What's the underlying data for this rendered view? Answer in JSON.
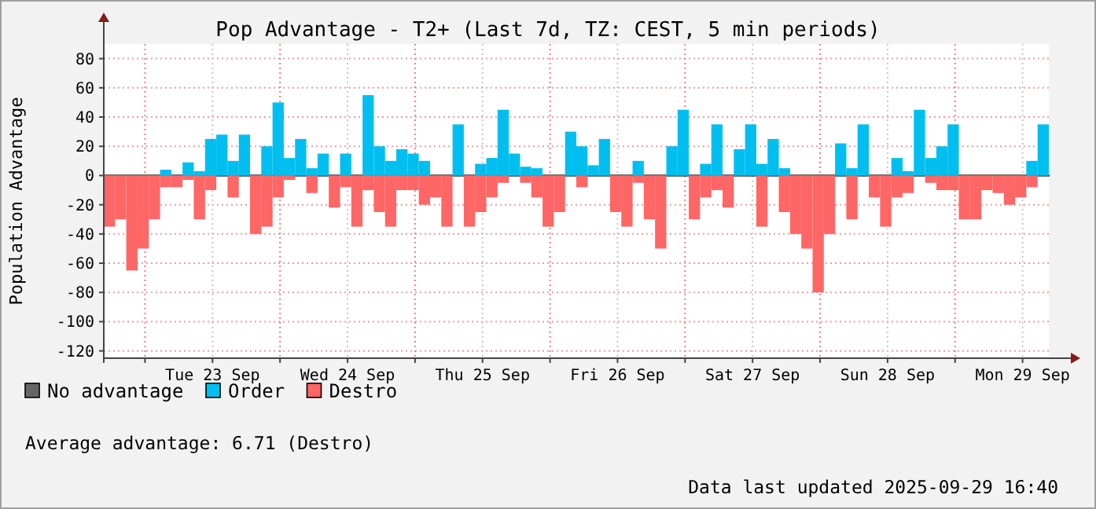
{
  "chart_data": {
    "type": "bar",
    "title": "Pop Advantage - T2+ (Last 7d, TZ: CEST, 5 min periods)",
    "ylabel": "Population Advantage",
    "x": [
      "2025-09-22T17:40",
      "2025-09-22T19:40",
      "2025-09-22T21:40",
      "2025-09-22T23:40",
      "2025-09-23T01:40",
      "2025-09-23T03:40",
      "2025-09-23T05:40",
      "2025-09-23T07:40",
      "2025-09-23T09:40",
      "2025-09-23T11:40",
      "2025-09-23T13:40",
      "2025-09-23T15:40",
      "2025-09-23T17:40",
      "2025-09-23T19:40",
      "2025-09-23T21:40",
      "2025-09-23T23:40",
      "2025-09-24T01:40",
      "2025-09-24T03:40",
      "2025-09-24T05:40",
      "2025-09-24T07:40",
      "2025-09-24T09:40",
      "2025-09-24T11:40",
      "2025-09-24T13:40",
      "2025-09-24T15:40",
      "2025-09-24T17:40",
      "2025-09-24T19:40",
      "2025-09-24T21:40",
      "2025-09-24T23:40",
      "2025-09-25T01:40",
      "2025-09-25T03:40",
      "2025-09-25T05:40",
      "2025-09-25T07:40",
      "2025-09-25T09:40",
      "2025-09-25T11:40",
      "2025-09-25T13:40",
      "2025-09-25T15:40",
      "2025-09-25T17:40",
      "2025-09-25T19:40",
      "2025-09-25T21:40",
      "2025-09-25T23:40",
      "2025-09-26T01:40",
      "2025-09-26T03:40",
      "2025-09-26T05:40",
      "2025-09-26T07:40",
      "2025-09-26T09:40",
      "2025-09-26T11:40",
      "2025-09-26T13:40",
      "2025-09-26T15:40",
      "2025-09-26T17:40",
      "2025-09-26T19:40",
      "2025-09-26T21:40",
      "2025-09-26T23:40",
      "2025-09-27T01:40",
      "2025-09-27T03:40",
      "2025-09-27T05:40",
      "2025-09-27T07:40",
      "2025-09-27T09:40",
      "2025-09-27T11:40",
      "2025-09-27T13:40",
      "2025-09-27T15:40",
      "2025-09-27T17:40",
      "2025-09-27T19:40",
      "2025-09-27T21:40",
      "2025-09-27T23:40",
      "2025-09-28T01:40",
      "2025-09-28T03:40",
      "2025-09-28T05:40",
      "2025-09-28T07:40",
      "2025-09-28T09:40",
      "2025-09-28T11:40",
      "2025-09-28T13:40",
      "2025-09-28T15:40",
      "2025-09-28T17:40",
      "2025-09-28T19:40",
      "2025-09-28T21:40",
      "2025-09-28T23:40",
      "2025-09-29T01:40",
      "2025-09-29T03:40",
      "2025-09-29T05:40",
      "2025-09-29T07:40",
      "2025-09-29T09:40",
      "2025-09-29T11:40",
      "2025-09-29T13:40",
      "2025-09-29T15:40"
    ],
    "series": [
      {
        "name": "No advantage",
        "type": "line",
        "color": "#666666",
        "x": [
          "2025-09-22T16:40",
          "2025-09-29T16:40"
        ],
        "values": [
          0,
          0
        ]
      },
      {
        "name": "Order",
        "color": "#00bff0",
        "values": [
          null,
          null,
          null,
          null,
          null,
          4,
          null,
          9,
          3,
          25,
          28,
          10,
          28,
          null,
          20,
          50,
          12,
          25,
          5,
          15,
          null,
          15,
          null,
          55,
          20,
          10,
          18,
          15,
          10,
          null,
          null,
          35,
          null,
          8,
          12,
          45,
          15,
          6,
          5,
          null,
          null,
          30,
          20,
          7,
          25,
          null,
          null,
          10,
          null,
          null,
          20,
          45,
          null,
          8,
          35,
          null,
          18,
          35,
          8,
          25,
          5,
          null,
          null,
          null,
          null,
          22,
          5,
          35,
          null,
          null,
          12,
          3,
          45,
          12,
          20,
          35,
          null,
          null,
          null,
          null,
          null,
          null,
          10,
          35
        ]
      },
      {
        "name": "Destro",
        "color": "#ff6666",
        "values": [
          -35,
          -30,
          -65,
          -50,
          -30,
          -8,
          -8,
          -3,
          -30,
          -10,
          null,
          -15,
          null,
          -40,
          -35,
          -15,
          -3,
          null,
          -12,
          null,
          -22,
          -8,
          -35,
          -10,
          -25,
          -35,
          -10,
          -10,
          -20,
          -15,
          -35,
          null,
          -35,
          -25,
          -15,
          -5,
          null,
          -5,
          -15,
          -35,
          -25,
          null,
          -8,
          null,
          null,
          -25,
          -35,
          -5,
          -30,
          -50,
          null,
          null,
          -30,
          -15,
          -10,
          -22,
          null,
          null,
          -35,
          null,
          -25,
          -40,
          -50,
          -80,
          -40,
          null,
          -30,
          null,
          -15,
          -35,
          -15,
          -12,
          null,
          -5,
          -10,
          -10,
          -30,
          -30,
          -10,
          -12,
          -20,
          -15,
          -8,
          null
        ]
      }
    ],
    "xlim": [
      "2025-09-22T16:40",
      "2025-09-29T16:40"
    ],
    "xticks": [
      {
        "value": "2025-09-23T00:00",
        "label": null
      },
      {
        "value": "2025-09-23T12:00",
        "label": "Tue 23 Sep"
      },
      {
        "value": "2025-09-24T00:00",
        "label": null
      },
      {
        "value": "2025-09-24T12:00",
        "label": "Wed 24 Sep"
      },
      {
        "value": "2025-09-25T00:00",
        "label": null
      },
      {
        "value": "2025-09-25T12:00",
        "label": "Thu 25 Sep"
      },
      {
        "value": "2025-09-26T00:00",
        "label": null
      },
      {
        "value": "2025-09-26T12:00",
        "label": "Fri 26 Sep"
      },
      {
        "value": "2025-09-27T00:00",
        "label": null
      },
      {
        "value": "2025-09-27T12:00",
        "label": "Sat 27 Sep"
      },
      {
        "value": "2025-09-28T00:00",
        "label": null
      },
      {
        "value": "2025-09-28T12:00",
        "label": "Sun 28 Sep"
      },
      {
        "value": "2025-09-29T00:00",
        "label": null
      },
      {
        "value": "2025-09-29T12:00",
        "label": "Mon 29 Sep"
      }
    ],
    "ylim": [
      -125,
      90
    ],
    "yticks": [
      -120,
      -100,
      -80,
      -60,
      -40,
      -20,
      0,
      20,
      40,
      60,
      80
    ],
    "grid": true,
    "legend": "bottom",
    "annotations": [
      "Average advantage: 6.71 (Destro)",
      "Data last updated 2025-09-29 16:40"
    ]
  }
}
